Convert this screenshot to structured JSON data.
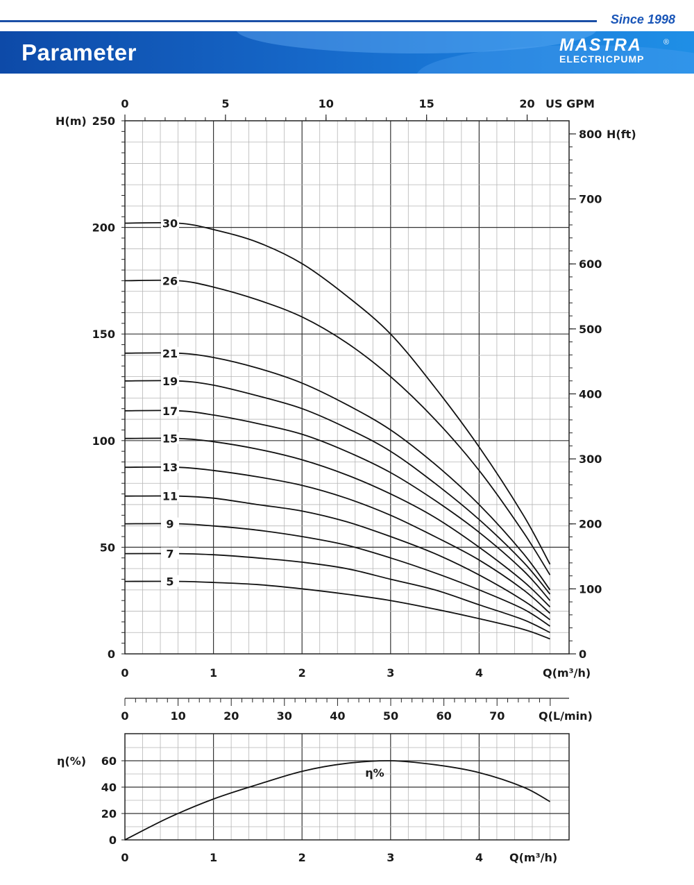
{
  "header": {
    "since": "Since 1998",
    "title": "Parameter",
    "logo_mark": "MASTRA",
    "logo_sub": "ELECTRICPUMP",
    "logo_reg": "®"
  },
  "chart_data": [
    {
      "type": "line",
      "x_label": "Q(m³/h)",
      "x_ticks": [
        "0",
        "1",
        "2",
        "3",
        "4"
      ],
      "x_range": [
        0,
        4.9
      ],
      "y_left_label": "H(m)",
      "y_left_ticks": [
        "0",
        "50",
        "100",
        "150",
        "200",
        "250"
      ],
      "y_left_range": [
        0,
        250
      ],
      "y_right_label": "H(ft)",
      "y_right_ticks": [
        "0",
        "100",
        "200",
        "300",
        "400",
        "500",
        "600",
        "700",
        "800"
      ],
      "top_axis_label": "US GPM",
      "top_axis_ticks": [
        "0",
        "5",
        "10",
        "15",
        "20"
      ],
      "grid": true,
      "series": [
        {
          "name": "30",
          "x": [
            0,
            0.6,
            1,
            1.5,
            2,
            2.5,
            3,
            3.5,
            4,
            4.5,
            4.8
          ],
          "y": [
            202,
            202,
            199,
            193,
            183,
            168,
            150,
            125,
            97,
            65,
            42
          ]
        },
        {
          "name": "26",
          "x": [
            0,
            0.6,
            1,
            1.5,
            2,
            2.5,
            3,
            3.5,
            4,
            4.5,
            4.8
          ],
          "y": [
            175,
            175,
            172,
            166,
            158,
            146,
            130,
            110,
            86,
            57,
            37
          ]
        },
        {
          "name": "21",
          "x": [
            0,
            0.6,
            1,
            1.5,
            2,
            2.5,
            3,
            3.5,
            4,
            4.5,
            4.8
          ],
          "y": [
            141,
            141,
            139,
            134,
            127,
            117,
            105,
            89,
            70,
            47,
            30
          ]
        },
        {
          "name": "19",
          "x": [
            0,
            0.6,
            1,
            1.5,
            2,
            2.5,
            3,
            3.5,
            4,
            4.5,
            4.8
          ],
          "y": [
            128,
            128,
            126,
            121,
            115,
            106,
            95,
            80,
            63,
            43,
            28
          ]
        },
        {
          "name": "17",
          "x": [
            0,
            0.6,
            1,
            1.5,
            2,
            2.5,
            3,
            3.5,
            4,
            4.5,
            4.8
          ],
          "y": [
            114,
            114,
            112,
            108,
            103,
            95,
            85,
            72,
            57,
            39,
            25
          ]
        },
        {
          "name": "15",
          "x": [
            0,
            0.6,
            1,
            1.5,
            2,
            2.5,
            3,
            3.5,
            4,
            4.5,
            4.8
          ],
          "y": [
            101,
            101,
            99.5,
            96,
            91,
            84,
            75,
            64,
            50,
            34,
            22
          ]
        },
        {
          "name": "13",
          "x": [
            0,
            0.6,
            1,
            1.5,
            2,
            2.5,
            3,
            3.5,
            4,
            4.5,
            4.8
          ],
          "y": [
            87.5,
            87.5,
            86,
            83,
            79,
            73,
            65,
            55,
            44,
            30,
            19
          ]
        },
        {
          "name": "11",
          "x": [
            0,
            0.6,
            1,
            1.5,
            2,
            2.5,
            3,
            3.5,
            4,
            4.5,
            4.8
          ],
          "y": [
            74,
            74,
            73,
            70,
            67,
            62,
            55,
            47,
            37,
            25,
            16
          ]
        },
        {
          "name": "9",
          "x": [
            0,
            0.6,
            1,
            1.5,
            2,
            2.5,
            3,
            3.5,
            4,
            4.5,
            4.8
          ],
          "y": [
            61,
            61,
            60,
            58,
            55,
            51,
            45,
            38,
            30,
            21,
            13
          ]
        },
        {
          "name": "7",
          "x": [
            0,
            0.6,
            1,
            1.5,
            2,
            2.5,
            3,
            3.5,
            4,
            4.5,
            4.8
          ],
          "y": [
            47,
            47,
            46.5,
            45,
            43,
            40,
            35,
            30,
            23,
            16,
            10
          ]
        },
        {
          "name": "5",
          "x": [
            0,
            0.6,
            1,
            1.5,
            2,
            2.5,
            3,
            3.5,
            4,
            4.5,
            4.8
          ],
          "y": [
            34,
            34,
            33.5,
            32.5,
            30.5,
            28,
            25,
            21,
            16.5,
            11.5,
            7
          ]
        }
      ]
    },
    {
      "type": "line",
      "x_label": "Q(m³/h)",
      "x_ticks": [
        "0",
        "1",
        "2",
        "3",
        "4"
      ],
      "x_range": [
        0,
        4.9
      ],
      "y_label": "η(%)",
      "y_ticks": [
        "0",
        "20",
        "40",
        "60"
      ],
      "y_range": [
        0,
        70
      ],
      "top_axis_label": "Q(L/min)",
      "top_axis_ticks": [
        "0",
        "10",
        "20",
        "30",
        "40",
        "50",
        "60",
        "70"
      ],
      "grid": true,
      "annotation": "η%",
      "series": [
        {
          "x": [
            0,
            0.5,
            1,
            1.5,
            2,
            2.5,
            3,
            3.5,
            4,
            4.5,
            4.8
          ],
          "y": [
            0,
            17,
            31,
            42,
            52,
            58,
            60,
            57,
            51,
            40,
            29
          ]
        }
      ]
    }
  ]
}
